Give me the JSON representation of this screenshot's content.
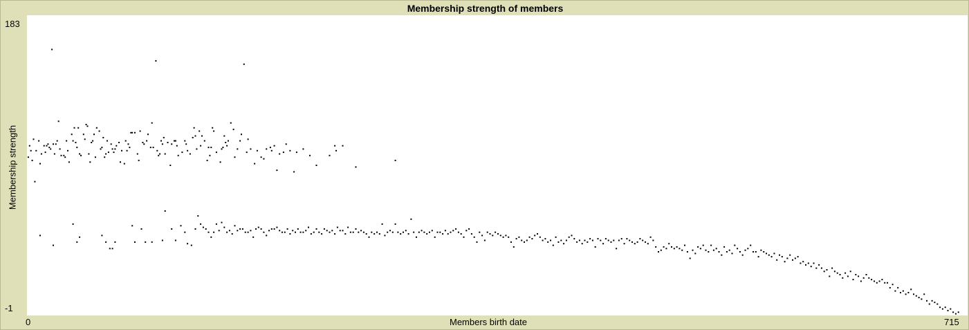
{
  "chart_data": {
    "type": "scatter",
    "title": "Membership strength of members",
    "xlabel": "Members birth date",
    "ylabel": "Membership strength",
    "xlim": [
      0,
      715
    ],
    "ylim": [
      -1,
      183
    ],
    "x_tick_labels": [
      "0",
      "715"
    ],
    "y_tick_labels": [
      "183",
      "-1"
    ],
    "grid": false,
    "marker_color": "#000000",
    "points": [
      [
        1,
        96
      ],
      [
        2,
        103
      ],
      [
        3,
        100
      ],
      [
        4,
        94
      ],
      [
        5,
        107
      ],
      [
        6,
        81
      ],
      [
        7,
        100
      ],
      [
        9,
        106
      ],
      [
        10,
        92
      ],
      [
        11,
        98
      ],
      [
        13,
        103
      ],
      [
        14,
        99
      ],
      [
        15,
        103
      ],
      [
        16,
        104
      ],
      [
        17,
        102
      ],
      [
        18,
        101
      ],
      [
        19,
        162
      ],
      [
        20,
        104
      ],
      [
        21,
        98
      ],
      [
        22,
        104
      ],
      [
        23,
        106
      ],
      [
        24,
        118
      ],
      [
        25,
        101
      ],
      [
        26,
        97
      ],
      [
        28,
        97
      ],
      [
        29,
        96
      ],
      [
        30,
        106
      ],
      [
        31,
        100
      ],
      [
        32,
        93
      ],
      [
        34,
        110
      ],
      [
        35,
        106
      ],
      [
        36,
        114
      ],
      [
        37,
        105
      ],
      [
        38,
        102
      ],
      [
        39,
        114
      ],
      [
        40,
        98
      ],
      [
        41,
        97
      ],
      [
        43,
        110
      ],
      [
        44,
        107
      ],
      [
        45,
        116
      ],
      [
        46,
        115
      ],
      [
        47,
        98
      ],
      [
        48,
        93
      ],
      [
        49,
        105
      ],
      [
        50,
        106
      ],
      [
        51,
        110
      ],
      [
        52,
        96
      ],
      [
        53,
        114
      ],
      [
        55,
        112
      ],
      [
        56,
        101
      ],
      [
        57,
        102
      ],
      [
        58,
        108
      ],
      [
        59,
        96
      ],
      [
        60,
        98
      ],
      [
        61,
        106
      ],
      [
        62,
        99
      ],
      [
        64,
        104
      ],
      [
        65,
        101
      ],
      [
        66,
        99
      ],
      [
        67,
        101
      ],
      [
        68,
        103
      ],
      [
        70,
        105
      ],
      [
        71,
        93
      ],
      [
        72,
        100
      ],
      [
        74,
        92
      ],
      [
        75,
        106
      ],
      [
        76,
        100
      ],
      [
        77,
        104
      ],
      [
        78,
        102
      ],
      [
        79,
        111
      ],
      [
        80,
        111
      ],
      [
        82,
        111
      ],
      [
        84,
        98
      ],
      [
        85,
        94
      ],
      [
        86,
        112
      ],
      [
        88,
        105
      ],
      [
        89,
        104
      ],
      [
        91,
        106
      ],
      [
        92,
        110
      ],
      [
        94,
        102
      ],
      [
        95,
        117
      ],
      [
        96,
        102
      ],
      [
        98,
        155
      ],
      [
        99,
        100
      ],
      [
        100,
        97
      ],
      [
        101,
        98
      ],
      [
        102,
        106
      ],
      [
        103,
        104
      ],
      [
        104,
        108
      ],
      [
        105,
        98
      ],
      [
        107,
        105
      ],
      [
        109,
        91
      ],
      [
        110,
        104
      ],
      [
        112,
        106
      ],
      [
        113,
        106
      ],
      [
        114,
        103
      ],
      [
        115,
        97
      ],
      [
        118,
        99
      ],
      [
        120,
        106
      ],
      [
        121,
        104
      ],
      [
        122,
        100
      ],
      [
        124,
        98
      ],
      [
        126,
        108
      ],
      [
        127,
        114
      ],
      [
        128,
        109
      ],
      [
        129,
        101
      ],
      [
        131,
        112
      ],
      [
        132,
        103
      ],
      [
        133,
        109
      ],
      [
        135,
        106
      ],
      [
        137,
        94
      ],
      [
        138,
        102
      ],
      [
        139,
        97
      ],
      [
        140,
        102
      ],
      [
        141,
        114
      ],
      [
        142,
        112
      ],
      [
        144,
        99
      ],
      [
        147,
        93
      ],
      [
        148,
        101
      ],
      [
        149,
        102
      ],
      [
        150,
        109
      ],
      [
        151,
        105
      ],
      [
        152,
        103
      ],
      [
        153,
        106
      ],
      [
        155,
        117
      ],
      [
        157,
        113
      ],
      [
        158,
        96
      ],
      [
        160,
        101
      ],
      [
        162,
        106
      ],
      [
        163,
        110
      ],
      [
        165,
        153
      ],
      [
        167,
        99
      ],
      [
        168,
        107
      ],
      [
        170,
        101
      ],
      [
        173,
        92
      ],
      [
        175,
        100
      ],
      [
        178,
        96
      ],
      [
        180,
        95
      ],
      [
        182,
        101
      ],
      [
        185,
        102
      ],
      [
        186,
        100
      ],
      [
        188,
        103
      ],
      [
        190,
        88
      ],
      [
        192,
        98
      ],
      [
        195,
        99
      ],
      [
        197,
        104
      ],
      [
        200,
        100
      ],
      [
        203,
        87
      ],
      [
        205,
        99
      ],
      [
        210,
        101
      ],
      [
        215,
        97
      ],
      [
        220,
        91
      ],
      [
        230,
        97
      ],
      [
        234,
        103
      ],
      [
        235,
        100
      ],
      [
        240,
        103
      ],
      [
        250,
        90
      ],
      [
        280,
        94
      ],
      [
        10,
        48
      ],
      [
        20,
        42
      ],
      [
        35,
        55
      ],
      [
        38,
        44
      ],
      [
        40,
        47
      ],
      [
        57,
        48
      ],
      [
        60,
        44
      ],
      [
        63,
        40
      ],
      [
        65,
        40
      ],
      [
        67,
        44
      ],
      [
        80,
        54
      ],
      [
        82,
        44
      ],
      [
        87,
        52
      ],
      [
        90,
        44
      ],
      [
        95,
        44
      ],
      [
        103,
        45
      ],
      [
        105,
        63
      ],
      [
        110,
        52
      ],
      [
        113,
        45
      ],
      [
        117,
        54
      ],
      [
        120,
        50
      ],
      [
        122,
        43
      ],
      [
        125,
        42
      ],
      [
        128,
        52
      ],
      [
        130,
        60
      ],
      [
        132,
        55
      ],
      [
        134,
        53
      ],
      [
        136,
        52
      ],
      [
        138,
        50
      ],
      [
        140,
        47
      ],
      [
        142,
        50
      ],
      [
        144,
        55
      ],
      [
        146,
        51
      ],
      [
        148,
        56
      ],
      [
        150,
        53
      ],
      [
        152,
        50
      ],
      [
        154,
        51
      ],
      [
        156,
        49
      ],
      [
        158,
        54
      ],
      [
        160,
        51
      ],
      [
        162,
        52
      ],
      [
        164,
        52
      ],
      [
        166,
        50
      ],
      [
        168,
        50
      ],
      [
        170,
        51
      ],
      [
        172,
        47
      ],
      [
        174,
        52
      ],
      [
        176,
        53
      ],
      [
        178,
        52
      ],
      [
        180,
        50
      ],
      [
        182,
        48
      ],
      [
        184,
        51
      ],
      [
        186,
        52
      ],
      [
        188,
        52
      ],
      [
        190,
        53
      ],
      [
        192,
        51
      ],
      [
        194,
        50
      ],
      [
        196,
        50
      ],
      [
        198,
        52
      ],
      [
        200,
        49
      ],
      [
        202,
        51
      ],
      [
        204,
        50
      ],
      [
        206,
        52
      ],
      [
        208,
        50
      ],
      [
        210,
        50
      ],
      [
        212,
        51
      ],
      [
        214,
        53
      ],
      [
        216,
        49
      ],
      [
        218,
        50
      ],
      [
        220,
        52
      ],
      [
        222,
        50
      ],
      [
        224,
        49
      ],
      [
        226,
        52
      ],
      [
        228,
        51
      ],
      [
        230,
        50
      ],
      [
        232,
        51
      ],
      [
        234,
        49
      ],
      [
        236,
        53
      ],
      [
        238,
        51
      ],
      [
        240,
        51
      ],
      [
        242,
        49
      ],
      [
        244,
        53
      ],
      [
        246,
        50
      ],
      [
        248,
        50
      ],
      [
        250,
        52
      ],
      [
        252,
        50
      ],
      [
        254,
        51
      ],
      [
        256,
        50
      ],
      [
        258,
        49
      ],
      [
        260,
        47
      ],
      [
        262,
        50
      ],
      [
        264,
        49
      ],
      [
        266,
        50
      ],
      [
        268,
        49
      ],
      [
        270,
        55
      ],
      [
        272,
        48
      ],
      [
        274,
        50
      ],
      [
        276,
        51
      ],
      [
        278,
        50
      ],
      [
        280,
        55
      ],
      [
        282,
        50
      ],
      [
        284,
        49
      ],
      [
        286,
        50
      ],
      [
        288,
        51
      ],
      [
        290,
        49
      ],
      [
        292,
        58
      ],
      [
        294,
        50
      ],
      [
        296,
        47
      ],
      [
        298,
        50
      ],
      [
        300,
        51
      ],
      [
        302,
        50
      ],
      [
        304,
        49
      ],
      [
        306,
        50
      ],
      [
        308,
        51
      ],
      [
        310,
        47
      ],
      [
        312,
        50
      ],
      [
        314,
        50
      ],
      [
        316,
        49
      ],
      [
        318,
        51
      ],
      [
        320,
        49
      ],
      [
        322,
        50
      ],
      [
        324,
        51
      ],
      [
        326,
        52
      ],
      [
        328,
        50
      ],
      [
        330,
        49
      ],
      [
        332,
        47
      ],
      [
        334,
        51
      ],
      [
        336,
        52
      ],
      [
        338,
        49
      ],
      [
        340,
        47
      ],
      [
        342,
        44
      ],
      [
        344,
        50
      ],
      [
        346,
        48
      ],
      [
        348,
        45
      ],
      [
        350,
        50
      ],
      [
        352,
        49
      ],
      [
        354,
        48
      ],
      [
        356,
        50
      ],
      [
        358,
        49
      ],
      [
        360,
        48
      ],
      [
        362,
        47
      ],
      [
        364,
        48
      ],
      [
        366,
        47
      ],
      [
        368,
        44
      ],
      [
        370,
        41
      ],
      [
        372,
        46
      ],
      [
        374,
        47
      ],
      [
        376,
        45
      ],
      [
        378,
        44
      ],
      [
        380,
        45
      ],
      [
        382,
        47
      ],
      [
        384,
        46
      ],
      [
        386,
        48
      ],
      [
        388,
        49
      ],
      [
        390,
        47
      ],
      [
        392,
        45
      ],
      [
        394,
        46
      ],
      [
        396,
        44
      ],
      [
        398,
        45
      ],
      [
        400,
        42
      ],
      [
        402,
        47
      ],
      [
        404,
        44
      ],
      [
        406,
        45
      ],
      [
        408,
        43
      ],
      [
        410,
        45
      ],
      [
        412,
        47
      ],
      [
        414,
        48
      ],
      [
        416,
        46
      ],
      [
        418,
        44
      ],
      [
        420,
        45
      ],
      [
        422,
        43
      ],
      [
        424,
        45
      ],
      [
        426,
        44
      ],
      [
        428,
        46
      ],
      [
        430,
        45
      ],
      [
        432,
        41
      ],
      [
        434,
        46
      ],
      [
        436,
        45
      ],
      [
        438,
        43
      ],
      [
        440,
        46
      ],
      [
        442,
        45
      ],
      [
        444,
        44
      ],
      [
        446,
        45
      ],
      [
        448,
        40
      ],
      [
        450,
        45
      ],
      [
        452,
        46
      ],
      [
        454,
        43
      ],
      [
        456,
        46
      ],
      [
        458,
        45
      ],
      [
        460,
        44
      ],
      [
        462,
        43
      ],
      [
        464,
        44
      ],
      [
        466,
        46
      ],
      [
        468,
        45
      ],
      [
        470,
        44
      ],
      [
        472,
        43
      ],
      [
        474,
        47
      ],
      [
        476,
        45
      ],
      [
        478,
        41
      ],
      [
        480,
        38
      ],
      [
        482,
        39
      ],
      [
        484,
        41
      ],
      [
        486,
        40
      ],
      [
        488,
        43
      ],
      [
        490,
        41
      ],
      [
        492,
        40
      ],
      [
        494,
        41
      ],
      [
        496,
        40
      ],
      [
        498,
        39
      ],
      [
        500,
        42
      ],
      [
        502,
        38
      ],
      [
        504,
        34
      ],
      [
        506,
        39
      ],
      [
        508,
        37
      ],
      [
        510,
        41
      ],
      [
        512,
        40
      ],
      [
        514,
        42
      ],
      [
        516,
        39
      ],
      [
        518,
        38
      ],
      [
        520,
        42
      ],
      [
        522,
        39
      ],
      [
        524,
        40
      ],
      [
        526,
        38
      ],
      [
        528,
        36
      ],
      [
        530,
        41
      ],
      [
        532,
        38
      ],
      [
        534,
        39
      ],
      [
        536,
        37
      ],
      [
        538,
        42
      ],
      [
        540,
        40
      ],
      [
        542,
        38
      ],
      [
        544,
        36
      ],
      [
        546,
        39
      ],
      [
        548,
        40
      ],
      [
        550,
        42
      ],
      [
        552,
        38
      ],
      [
        554,
        38
      ],
      [
        556,
        35
      ],
      [
        558,
        39
      ],
      [
        560,
        38
      ],
      [
        562,
        37
      ],
      [
        564,
        36
      ],
      [
        566,
        35
      ],
      [
        568,
        37
      ],
      [
        570,
        33
      ],
      [
        572,
        36
      ],
      [
        574,
        35
      ],
      [
        576,
        32
      ],
      [
        578,
        34
      ],
      [
        580,
        36
      ],
      [
        582,
        33
      ],
      [
        584,
        34
      ],
      [
        586,
        35
      ],
      [
        588,
        31
      ],
      [
        590,
        32
      ],
      [
        592,
        30
      ],
      [
        594,
        31
      ],
      [
        596,
        29
      ],
      [
        598,
        31
      ],
      [
        600,
        28
      ],
      [
        602,
        30
      ],
      [
        604,
        28
      ],
      [
        606,
        26
      ],
      [
        608,
        27
      ],
      [
        610,
        23
      ],
      [
        612,
        28
      ],
      [
        614,
        26
      ],
      [
        616,
        25
      ],
      [
        618,
        24
      ],
      [
        620,
        22
      ],
      [
        622,
        25
      ],
      [
        624,
        23
      ],
      [
        626,
        26
      ],
      [
        628,
        21
      ],
      [
        630,
        24
      ],
      [
        632,
        23
      ],
      [
        634,
        20
      ],
      [
        636,
        22
      ],
      [
        638,
        24
      ],
      [
        640,
        22
      ],
      [
        642,
        21
      ],
      [
        644,
        20
      ],
      [
        646,
        19
      ],
      [
        648,
        20
      ],
      [
        650,
        21
      ],
      [
        652,
        19
      ],
      [
        654,
        19
      ],
      [
        656,
        16
      ],
      [
        658,
        18
      ],
      [
        660,
        14
      ],
      [
        662,
        16
      ],
      [
        664,
        13
      ],
      [
        666,
        14
      ],
      [
        668,
        12
      ],
      [
        670,
        13
      ],
      [
        672,
        15
      ],
      [
        674,
        12
      ],
      [
        676,
        11
      ],
      [
        678,
        10
      ],
      [
        680,
        9
      ],
      [
        682,
        12
      ],
      [
        684,
        8
      ],
      [
        686,
        6
      ],
      [
        688,
        8
      ],
      [
        690,
        7
      ],
      [
        692,
        6
      ],
      [
        694,
        4
      ],
      [
        696,
        3
      ],
      [
        698,
        4
      ],
      [
        700,
        2
      ],
      [
        702,
        3
      ],
      [
        704,
        1
      ],
      [
        706,
        0
      ],
      [
        708,
        1
      ]
    ]
  }
}
